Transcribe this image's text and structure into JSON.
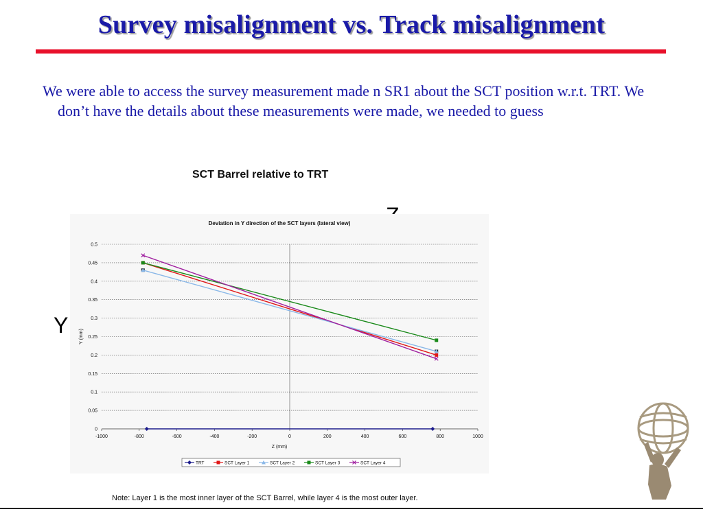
{
  "slide": {
    "title": "Survey misalignment vs. Track misalignment",
    "body": "We were able to access the survey measurement made n SR1 about the SCT position w.r.t. TRT. We don’t have the details about these measurements were made, we needed to guess",
    "chart_heading": "SCT Barrel relative to TRT",
    "axis_z_marker": "Z",
    "axis_y_marker": "Y",
    "note": "Note: Layer 1 is the most inner layer of the SCT Barrel, while layer 4 is the most outer layer."
  },
  "colors": {
    "title": "#1a1aa8",
    "rule": "#e8102a",
    "trt": "#1c1c8c",
    "layer1": "#e01818",
    "layer2": "#8ab8e8",
    "layer3": "#1a8a1a",
    "layer4": "#a020a0"
  },
  "chart_data": {
    "type": "line",
    "title": "Deviation in Y direction of the SCT layers (lateral view)",
    "xlabel": "Z (mm)",
    "ylabel": "Y (mm)",
    "xlim": [
      -1000,
      1000
    ],
    "ylim": [
      0,
      0.5
    ],
    "xticks": [
      "-1000",
      "-800",
      "-600",
      "-400",
      "-200",
      "0",
      "200",
      "400",
      "600",
      "800",
      "1000"
    ],
    "yticks": [
      "0",
      "0.05",
      "0.1",
      "0.15",
      "0.2",
      "0.25",
      "0.3",
      "0.35",
      "0.4",
      "0.45",
      "0.5"
    ],
    "grid": true,
    "legend_position": "bottom",
    "series": [
      {
        "name": "TRT",
        "color": "#1c1c8c",
        "marker": "diamond",
        "points": [
          [
            -760,
            0
          ],
          [
            760,
            0
          ]
        ]
      },
      {
        "name": "SCT Layer 1",
        "color": "#e01818",
        "marker": "square",
        "points": [
          [
            -780,
            0.45
          ],
          [
            780,
            0.2
          ]
        ]
      },
      {
        "name": "SCT Layer 2",
        "color": "#8ab8e8",
        "marker": "triangle",
        "points": [
          [
            -780,
            0.43
          ],
          [
            780,
            0.21
          ]
        ]
      },
      {
        "name": "SCT Layer 3",
        "color": "#1a8a1a",
        "marker": "square",
        "points": [
          [
            -780,
            0.45
          ],
          [
            780,
            0.24
          ]
        ]
      },
      {
        "name": "SCT Layer 4",
        "color": "#a020a0",
        "marker": "x",
        "points": [
          [
            -780,
            0.47
          ],
          [
            780,
            0.19
          ]
        ]
      }
    ],
    "extra_markers": [
      {
        "color": "#222222",
        "marker": "square",
        "points": [
          [
            -780,
            0.43
          ],
          [
            780,
            0.21
          ]
        ]
      }
    ]
  }
}
